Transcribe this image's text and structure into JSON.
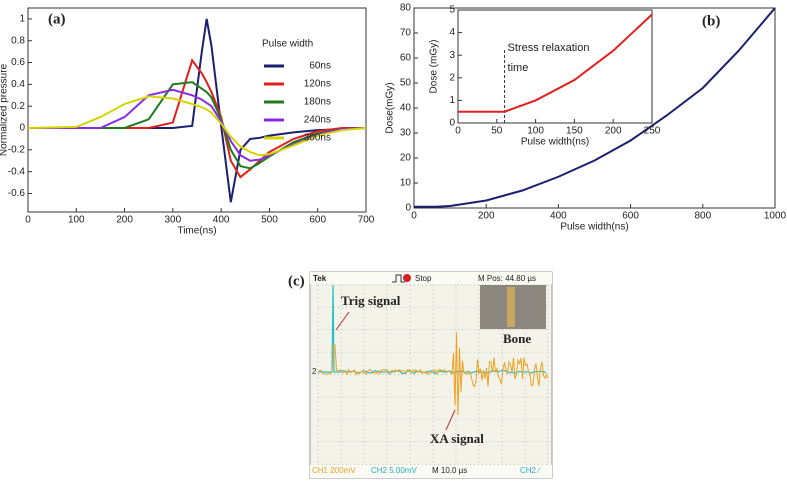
{
  "chart_data": [
    {
      "type": "line",
      "label": "(a)",
      "xlabel": "Time(ns)",
      "ylabel": "Normalized pressure",
      "x": [
        0,
        100,
        150,
        200,
        250,
        300,
        340,
        360,
        370,
        380,
        400,
        420,
        440,
        460,
        480,
        500,
        550,
        600,
        650,
        700
      ],
      "legend_title": "Pulse width",
      "series": [
        {
          "name": "60ns",
          "color": "#1a1f6e",
          "values": [
            0,
            0,
            0,
            0,
            0,
            0,
            0.02,
            0.7,
            1.0,
            0.75,
            0.02,
            -0.68,
            -0.2,
            -0.1,
            -0.09,
            -0.07,
            -0.04,
            -0.02,
            -0.01,
            0
          ]
        },
        {
          "name": "120ns",
          "color": "#e0201b",
          "values": [
            0,
            0,
            0,
            0,
            0,
            0.05,
            0.62,
            0.5,
            0.42,
            0.33,
            0.1,
            -0.3,
            -0.45,
            -0.38,
            -0.3,
            -0.22,
            -0.1,
            -0.03,
            0,
            0
          ]
        },
        {
          "name": "180ns",
          "color": "#1f7a1f",
          "values": [
            0,
            0,
            0,
            0,
            0.08,
            0.4,
            0.42,
            0.36,
            0.33,
            0.28,
            0.08,
            -0.2,
            -0.35,
            -0.37,
            -0.32,
            -0.26,
            -0.13,
            -0.05,
            -0.01,
            0
          ]
        },
        {
          "name": "240ns",
          "color": "#8a2be2",
          "values": [
            0,
            0,
            0,
            0.1,
            0.3,
            0.35,
            0.3,
            0.26,
            0.23,
            0.2,
            0.06,
            -0.12,
            -0.25,
            -0.3,
            -0.29,
            -0.25,
            -0.15,
            -0.06,
            -0.01,
            0
          ]
        },
        {
          "name": "300ns",
          "color": "#d4d400",
          "values": [
            0,
            0.01,
            0.1,
            0.22,
            0.29,
            0.27,
            0.22,
            0.19,
            0.17,
            0.14,
            0.04,
            -0.08,
            -0.17,
            -0.22,
            -0.25,
            -0.24,
            -0.16,
            -0.07,
            -0.02,
            0
          ]
        }
      ],
      "xlim": [
        0,
        700
      ],
      "xticks": [
        0,
        100,
        200,
        300,
        400,
        500,
        600,
        700
      ],
      "ylim": [
        -0.77,
        1.1
      ],
      "yticks": [
        -0.6,
        -0.4,
        -0.2,
        0,
        0.2,
        0.4,
        0.6,
        0.8,
        1
      ]
    },
    {
      "type": "line",
      "label": "(b)",
      "xlabel": "Pulse width(ns)",
      "ylabel": "Dose(mGy)",
      "x": [
        0,
        60,
        100,
        200,
        300,
        400,
        500,
        600,
        700,
        800,
        900,
        1000
      ],
      "series": [
        {
          "color": "#1a1f6e",
          "values": [
            0.5,
            0.5,
            0.8,
            3,
            7,
            12.5,
            19,
            27,
            37,
            48,
            63,
            80
          ]
        }
      ],
      "xlim": [
        0,
        1000
      ],
      "xticks": [
        0,
        200,
        400,
        600,
        800,
        1000
      ],
      "ylim": [
        0,
        80
      ],
      "yticks": [
        0,
        10,
        20,
        30,
        40,
        50,
        60,
        70,
        80
      ]
    },
    {
      "type": "line",
      "xlabel": "Pulse width(ns)",
      "ylabel": "Dose (mGy)",
      "x": [
        0,
        60,
        100,
        150,
        200,
        250
      ],
      "series": [
        {
          "color": "#e0201b",
          "values": [
            0.5,
            0.5,
            1.0,
            1.9,
            3.2,
            4.8
          ]
        }
      ],
      "vline": 60,
      "annotation": [
        "Stress relaxation",
        "time"
      ],
      "xlim": [
        0,
        250
      ],
      "xticks": [
        0,
        50,
        100,
        150,
        200,
        250
      ],
      "ylim": [
        0,
        5
      ],
      "yticks": [
        0,
        1,
        2,
        3,
        4,
        5
      ]
    }
  ],
  "scope": {
    "label": "(c)",
    "brand": "Tek",
    "state": "Stop",
    "position": "M Pos: 44.80 µs",
    "trig": "Trig signal",
    "sample": "Bone",
    "xa": "XA signal",
    "marker": "2",
    "ch1": "CH1  200mV",
    "ch2": "CH2  5.00mV",
    "timebase": "M 10.0 µs",
    "trigger": "CH2 ∕"
  }
}
